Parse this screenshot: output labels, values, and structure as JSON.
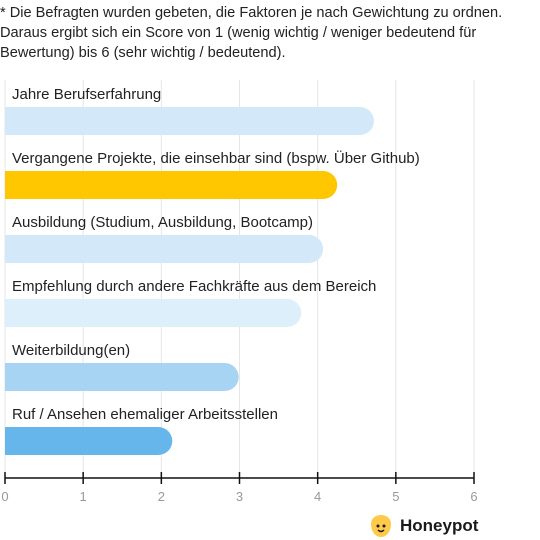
{
  "note": "* Die Befragten wurden gebeten, die Faktoren je nach Gewichtung zu ordnen. Daraus ergibt sich ein Score von 1 (wenig wichtig / weniger bedeutend für Bewertung) bis 6 (sehr wichtig / bedeutend).",
  "brand": {
    "name": "Honeypot",
    "icon": "honeypot-logo-icon",
    "icon_color": "#FFC94A"
  },
  "chart_data": {
    "type": "bar",
    "orientation": "horizontal",
    "categories": [
      "Jahre Berufserfahrung",
      "Vergangene Projekte, die einsehbar sind (bspw. Über Github)",
      "Ausbildung (Studium, Ausbildung, Bootcamp)",
      "Empfehlung durch andere Fachkräfte aus dem Bereich",
      "Weiterbildung(en)",
      "Ruf / Ansehen ehemaliger Arbeitsstellen"
    ],
    "values": [
      4.72,
      4.25,
      4.07,
      3.79,
      2.99,
      2.14
    ],
    "colors": [
      "#D3E9FA",
      "#FFC700",
      "#D3E9FA",
      "#DEEFFC",
      "#A8D4F3",
      "#66B6EB"
    ],
    "xlim": [
      0,
      6
    ],
    "xticks": [
      "0",
      "1",
      "2",
      "3",
      "4",
      "5",
      "6"
    ],
    "grid": true,
    "title": "",
    "xlabel": "",
    "ylabel": ""
  }
}
